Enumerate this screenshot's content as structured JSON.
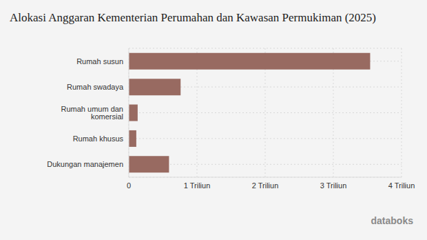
{
  "chart_data": {
    "type": "bar",
    "title": "Alokasi Anggaran Kementerian Perumahan dan Kawasan Permukiman (2025)",
    "orientation": "horizontal",
    "categories": [
      "Rumah susun",
      "Rumah swadaya",
      "Rumah umum dan komersial",
      "Rumah khusus",
      "Dukungan manajemen"
    ],
    "values": [
      3.54,
      0.76,
      0.13,
      0.11,
      0.59
    ],
    "color": "#986a61",
    "xlim": [
      0,
      4
    ],
    "xticks": [
      0,
      {
        "value": 1,
        "label": "1 Triliun"
      },
      {
        "value": 2,
        "label": "2 Triliun"
      },
      {
        "value": 3,
        "label": "3 Triliun"
      },
      {
        "value": 4,
        "label": "4 Triliun"
      }
    ],
    "grid": true,
    "annotations": [
      "databoks"
    ]
  }
}
